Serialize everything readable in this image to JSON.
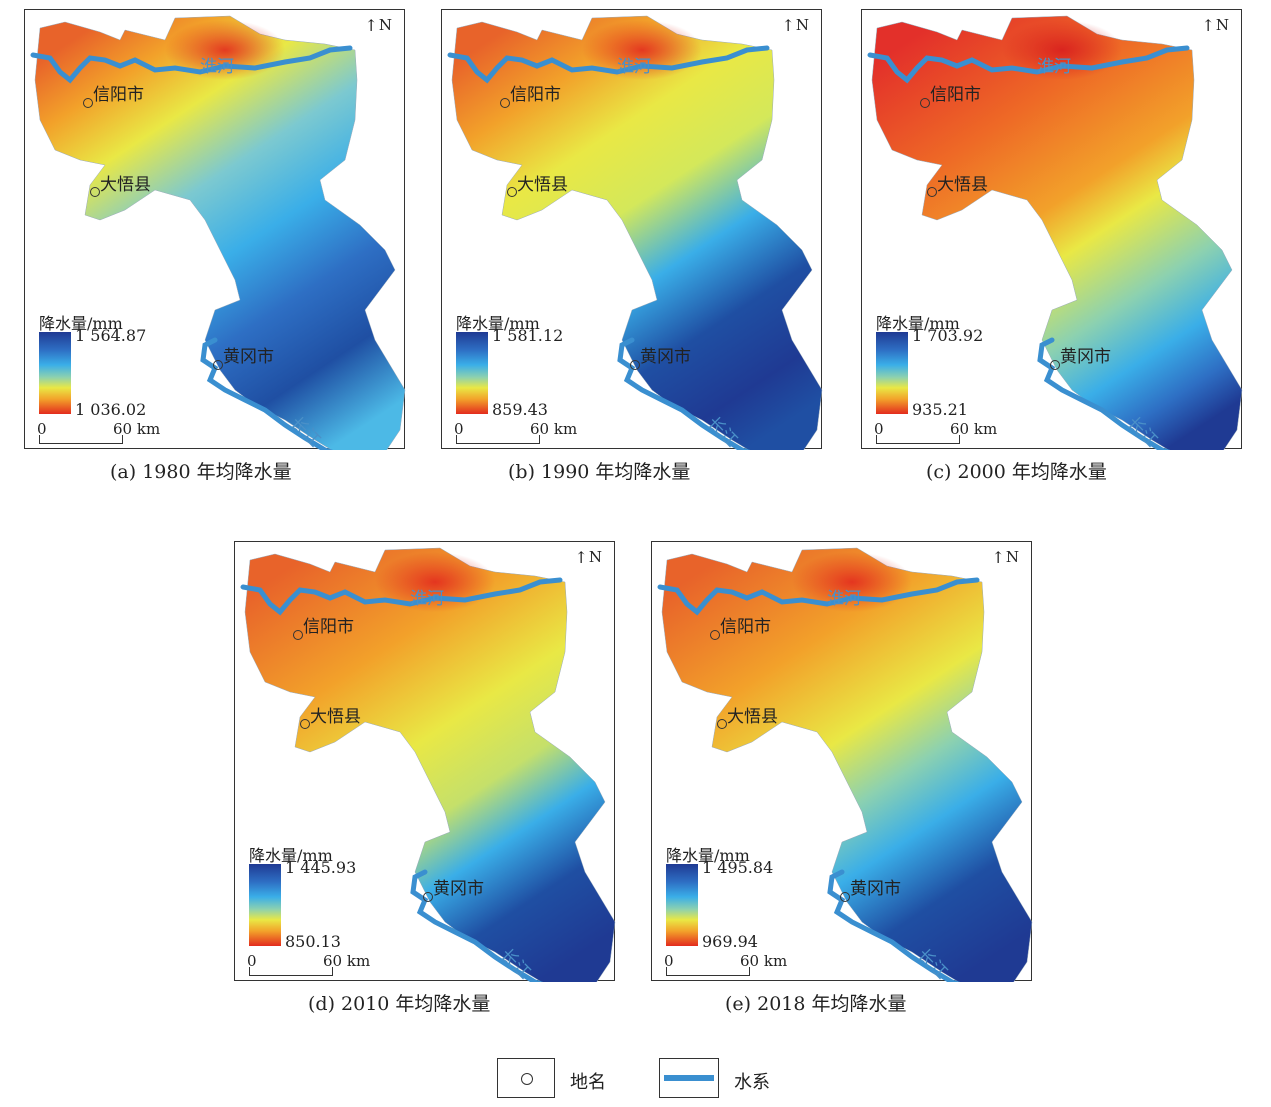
{
  "north_label": "N",
  "legend_title": "降水量/mm",
  "scale_zero": "0",
  "scale_sixty": "60 km",
  "places": {
    "xinyang": "信阳市",
    "dawu": "大悟县",
    "huanggang": "黄冈市"
  },
  "rivers": {
    "huaihe": "淮河",
    "changjiang": "长江"
  },
  "panels": [
    {
      "caption": "(a) 1980 年均降水量",
      "max": "1 564.87",
      "min": "1 036.02",
      "pattern": "a"
    },
    {
      "caption": "(b) 1990 年均降水量",
      "max": "1 581.12",
      "min": "859.43",
      "pattern": "b"
    },
    {
      "caption": "(c) 2000 年均降水量",
      "max": "1 703.92",
      "min": "935.21",
      "pattern": "c"
    },
    {
      "caption": "(d) 2010 年均降水量",
      "max": "1 445.93",
      "min": "850.13",
      "pattern": "d"
    },
    {
      "caption": "(e) 2018 年均降水量",
      "max": "1 495.84",
      "min": "969.94",
      "pattern": "e"
    }
  ],
  "key": {
    "place_label": "地名",
    "water_label": "水系"
  },
  "colors": {
    "high": "#1f3a93",
    "mid_blue": "#3aaee8",
    "yellow": "#e9e845",
    "orange": "#f2a12a",
    "low": "#e32b1e",
    "river": "#3a8fd0"
  }
}
